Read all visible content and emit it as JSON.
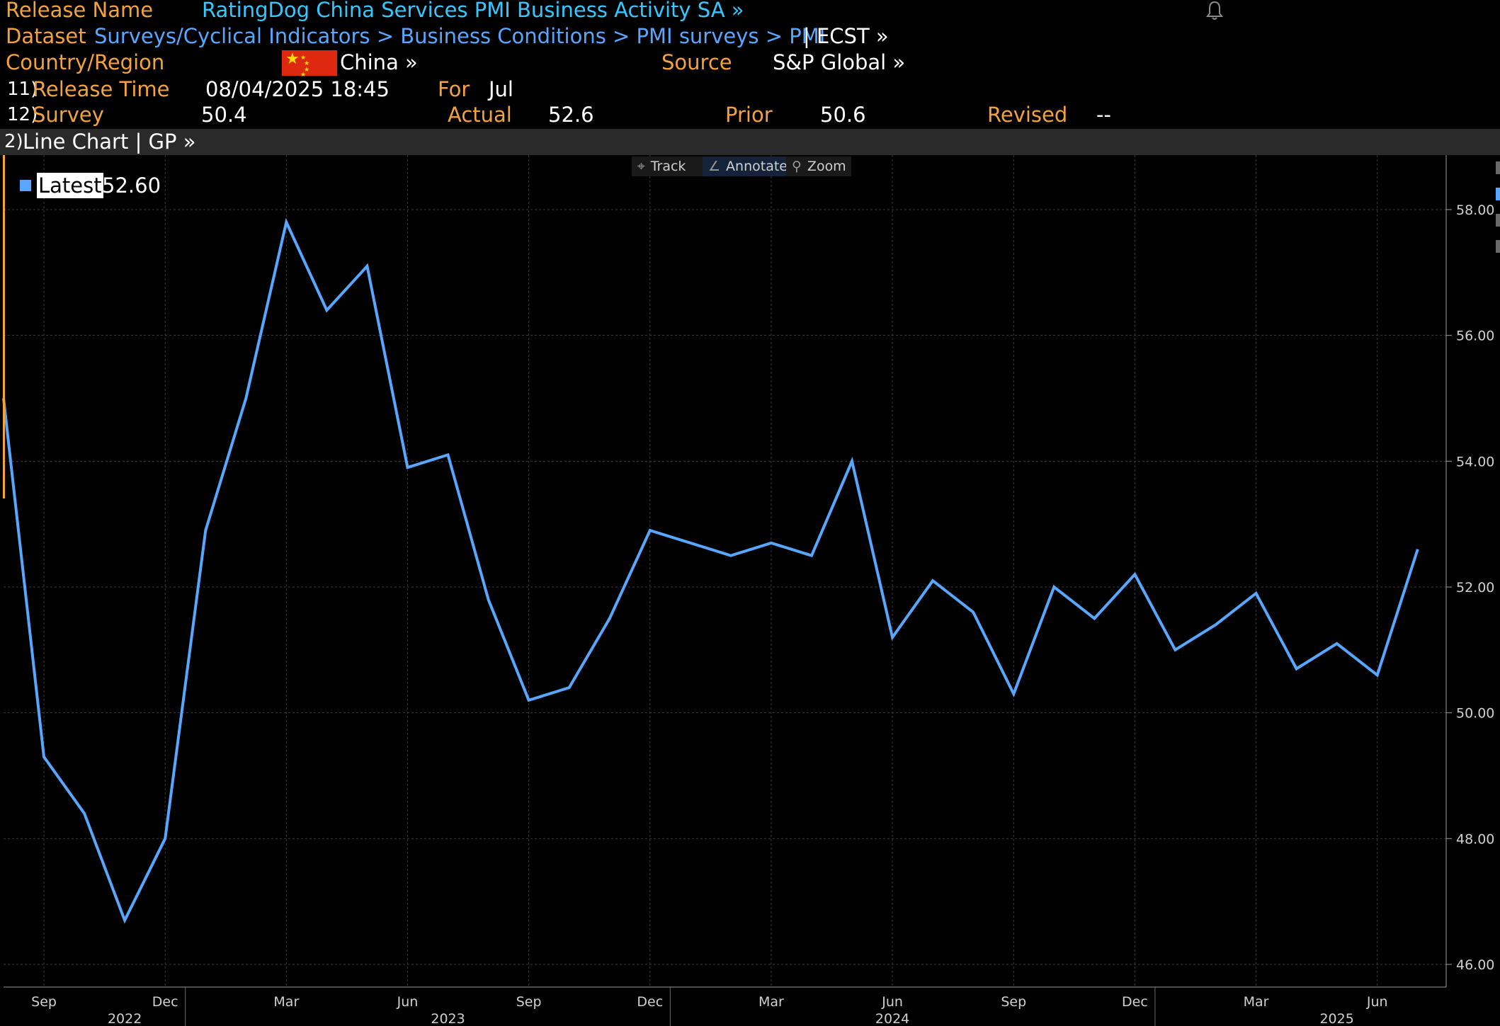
{
  "header": {
    "release_name_label": "Release Name",
    "release_name_value": "RatingDog China Services PMI Business Activity SA »",
    "dataset_label": "Dataset",
    "dataset_path": "Surveys/Cyclical Indicators > Business Conditions > PMI surveys > PMI",
    "dataset_suffix": "| ECST »",
    "country_label": "Country/Region",
    "country_value": "China »",
    "source_label": "Source",
    "source_value": "S&P Global »",
    "release_time_num": "11)",
    "release_time_label": "Release Time",
    "release_time_value": "08/04/2025 18:45",
    "for_label": "For",
    "for_value": "Jul",
    "survey_num": "12)",
    "survey_label": "Survey",
    "survey_value": "50.4",
    "actual_label": "Actual",
    "actual_value": "52.6",
    "prior_label": "Prior",
    "prior_value": "50.6",
    "revised_label": "Revised",
    "revised_value": "--"
  },
  "chart_bar": {
    "num": "2)",
    "label": "Line Chart | GP »"
  },
  "toolbar": {
    "track": "Track",
    "annotate": "Annotate",
    "zoom": "Zoom"
  },
  "icons": {
    "bell": "bell-icon",
    "flag": "china-flag-icon",
    "track": "crosshair-icon",
    "annotate": "pencil-icon",
    "zoom": "magnifier-icon"
  },
  "colors": {
    "series": "#58a7ff",
    "label_orange": "#f4a23c",
    "link_cyan": "#35c8ff",
    "link_blue": "#58a7ff",
    "grid": "#3a3a3a"
  },
  "chart_data": {
    "type": "line",
    "legend": {
      "label": "Latest",
      "value": "52.60",
      "placement": "top-left"
    },
    "x": [
      "2022-08",
      "2022-09",
      "2022-10",
      "2022-11",
      "2022-12",
      "2023-01",
      "2023-02",
      "2023-03",
      "2023-04",
      "2023-05",
      "2023-06",
      "2023-07",
      "2023-08",
      "2023-09",
      "2023-10",
      "2023-11",
      "2023-12",
      "2024-01",
      "2024-02",
      "2024-03",
      "2024-04",
      "2024-05",
      "2024-06",
      "2024-07",
      "2024-08",
      "2024-09",
      "2024-10",
      "2024-11",
      "2024-12",
      "2025-01",
      "2025-02",
      "2025-03",
      "2025-04",
      "2025-05",
      "2025-06",
      "2025-07"
    ],
    "series": [
      {
        "values": [
          55.0,
          49.3,
          48.4,
          46.7,
          48.0,
          52.9,
          55.0,
          57.8,
          56.4,
          57.1,
          53.9,
          54.1,
          51.8,
          50.2,
          50.4,
          51.5,
          52.9,
          52.7,
          52.5,
          52.7,
          52.5,
          54.0,
          51.2,
          52.1,
          51.6,
          50.3,
          52.0,
          51.5,
          52.2,
          51.0,
          51.4,
          51.9,
          50.7,
          51.1,
          50.6,
          52.6
        ]
      }
    ],
    "ylim": [
      46,
      58.8
    ],
    "y_ticks": [
      "46.00",
      "48.00",
      "50.00",
      "52.00",
      "54.00",
      "56.00",
      "58.00"
    ],
    "x_ticks": [
      {
        "x": "2022-09",
        "label": "Sep"
      },
      {
        "x": "2022-12",
        "label": "Dec"
      },
      {
        "x": "2023-03",
        "label": "Mar"
      },
      {
        "x": "2023-06",
        "label": "Jun"
      },
      {
        "x": "2023-09",
        "label": "Sep"
      },
      {
        "x": "2023-12",
        "label": "Dec"
      },
      {
        "x": "2024-03",
        "label": "Mar"
      },
      {
        "x": "2024-06",
        "label": "Jun"
      },
      {
        "x": "2024-09",
        "label": "Sep"
      },
      {
        "x": "2024-12",
        "label": "Dec"
      },
      {
        "x": "2025-03",
        "label": "Mar"
      },
      {
        "x": "2025-06",
        "label": "Jun"
      }
    ],
    "year_labels": [
      {
        "x": "2022-11",
        "label": "2022"
      },
      {
        "x": "2023-07",
        "label": "2023"
      },
      {
        "x": "2024-06",
        "label": "2024"
      },
      {
        "x": "2025-05",
        "label": "2025"
      }
    ],
    "grid": true
  }
}
